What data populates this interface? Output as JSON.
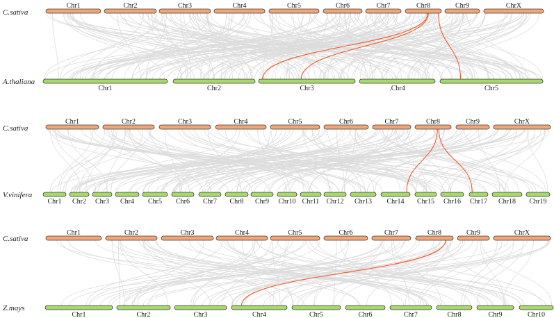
{
  "colors": {
    "top_chromosome": "#f2a678",
    "bottom_chromosome": "#a6d96a",
    "outline": "#3a3a3a",
    "background_link": "#dcdcdc",
    "highlight_link": "#f05a28"
  },
  "panels": [
    {
      "top": {
        "species": "C.sativa",
        "chromosomes": [
          {
            "label": "Chr1",
            "x1": 66,
            "x2": 145
          },
          {
            "label": "Chr2",
            "x1": 150,
            "x2": 225
          },
          {
            "label": "Chr3",
            "x1": 229,
            "x2": 303
          },
          {
            "label": "Chr4",
            "x1": 308,
            "x2": 381
          },
          {
            "label": "Chr5",
            "x1": 387,
            "x2": 459
          },
          {
            "label": "Chr6",
            "x1": 465,
            "x2": 521
          },
          {
            "label": "Chr7",
            "x1": 526,
            "x2": 577
          },
          {
            "label": "Chr8",
            "x1": 583,
            "x2": 635
          },
          {
            "label": "Chr9",
            "x1": 640,
            "x2": 690
          },
          {
            "label": "ChrX",
            "x1": 696,
            "x2": 782
          }
        ]
      },
      "bottom": {
        "species": "A.thaliana",
        "chromosomes": [
          {
            "label": "Chr1",
            "x1": 62,
            "x2": 241
          },
          {
            "label": "Chr2",
            "x1": 249,
            "x2": 367
          },
          {
            "label": "Chr3",
            "x1": 372,
            "x2": 511
          },
          {
            "label": ".Chr4",
            "x1": 517,
            "x2": 626
          },
          {
            "label": "Chr5",
            "x1": 633,
            "x2": 781
          }
        ]
      },
      "highlight_links": [
        {
          "from": "Chr8",
          "to": "Chr3"
        },
        {
          "from": "Chr8",
          "to": "Chr3"
        },
        {
          "from": "Chr8",
          "to": "Chr5"
        }
      ]
    },
    {
      "top": {
        "species": "C.sativa",
        "chromosomes": [
          {
            "label": "Chr1",
            "x1": 66,
            "x2": 142
          },
          {
            "label": "Chr2",
            "x1": 148,
            "x2": 222
          },
          {
            "label": "Chr3",
            "x1": 229,
            "x2": 303
          },
          {
            "label": "Chr4",
            "x1": 310,
            "x2": 383
          },
          {
            "label": "Chr5",
            "x1": 389,
            "x2": 460
          },
          {
            "label": "Chr6",
            "x1": 466,
            "x2": 530
          },
          {
            "label": "Chr7",
            "x1": 536,
            "x2": 591
          },
          {
            "label": "Chr8",
            "x1": 597,
            "x2": 649
          },
          {
            "label": "Chr9",
            "x1": 656,
            "x2": 704
          },
          {
            "label": "ChrX",
            "x1": 710,
            "x2": 792
          }
        ]
      },
      "bottom": {
        "species": "V.vinifera",
        "chromosomes": [
          {
            "label": "Chr1",
            "x1": 62,
            "x2": 95
          },
          {
            "label": "Chr2",
            "x1": 100,
            "x2": 128
          },
          {
            "label": "Chr3",
            "x1": 133,
            "x2": 161
          },
          {
            "label": "Chr4",
            "x1": 166,
            "x2": 200
          },
          {
            "label": "Chr5",
            "x1": 205,
            "x2": 241
          },
          {
            "label": "Chr6",
            "x1": 247,
            "x2": 279
          },
          {
            "label": "Chr7",
            "x1": 286,
            "x2": 318
          },
          {
            "label": "Chr8",
            "x1": 324,
            "x2": 357
          },
          {
            "label": "Chr9",
            "x1": 361,
            "x2": 393
          },
          {
            "label": "Chr10",
            "x1": 399,
            "x2": 427
          },
          {
            "label": "Chr11",
            "x1": 432,
            "x2": 462
          },
          {
            "label": "Chr12",
            "x1": 466,
            "x2": 498
          },
          {
            "label": "Chr13",
            "x1": 504,
            "x2": 541
          },
          {
            "label": "Chr14",
            "x1": 548,
            "x2": 590
          },
          {
            "label": "Chr15",
            "x1": 597,
            "x2": 628
          },
          {
            "label": "Chr16",
            "x1": 634,
            "x2": 667
          },
          {
            "label": "Chr17",
            "x1": 675,
            "x2": 702
          },
          {
            "label": "Chr18",
            "x1": 708,
            "x2": 751
          },
          {
            "label": "Chr19",
            "x1": 757,
            "x2": 791
          }
        ]
      },
      "highlight_links": [
        {
          "from": "Chr8",
          "to": "Chr14"
        },
        {
          "from": "Chr8",
          "to": "Chr17"
        }
      ]
    },
    {
      "top": {
        "species": "C.sativa",
        "chromosomes": [
          {
            "label": "Chr1",
            "x1": 66,
            "x2": 146
          },
          {
            "label": "Chr2",
            "x1": 152,
            "x2": 226
          },
          {
            "label": "Chr3",
            "x1": 232,
            "x2": 307
          },
          {
            "label": "Chr4",
            "x1": 311,
            "x2": 385
          },
          {
            "label": "Chr5",
            "x1": 389,
            "x2": 460
          },
          {
            "label": "Chr6",
            "x1": 466,
            "x2": 529
          },
          {
            "label": "Chr7",
            "x1": 535,
            "x2": 591
          },
          {
            "label": "Chr8",
            "x1": 598,
            "x2": 652
          },
          {
            "label": "Chr9",
            "x1": 658,
            "x2": 704
          },
          {
            "label": "ChrX",
            "x1": 710,
            "x2": 792
          }
        ]
      },
      "bottom": {
        "species": "Z.mays",
        "chromosomes": [
          {
            "label": "Chr1",
            "x1": 65,
            "x2": 162
          },
          {
            "label": "Chr2",
            "x1": 168,
            "x2": 245
          },
          {
            "label": "Chr3",
            "x1": 251,
            "x2": 326
          },
          {
            "label": "Chr4",
            "x1": 333,
            "x2": 413
          },
          {
            "label": "Chr5",
            "x1": 420,
            "x2": 490
          },
          {
            "label": "Chr6",
            "x1": 497,
            "x2": 554
          },
          {
            "label": "Chr7",
            "x1": 561,
            "x2": 621
          },
          {
            "label": "Chr8",
            "x1": 628,
            "x2": 679
          },
          {
            "label": "Chr9",
            "x1": 686,
            "x2": 739
          },
          {
            "label": "Chr10",
            "x1": 747,
            "x2": 796
          }
        ]
      },
      "highlight_links": [
        {
          "from": "Chr8",
          "to": "Chr4"
        }
      ]
    }
  ]
}
